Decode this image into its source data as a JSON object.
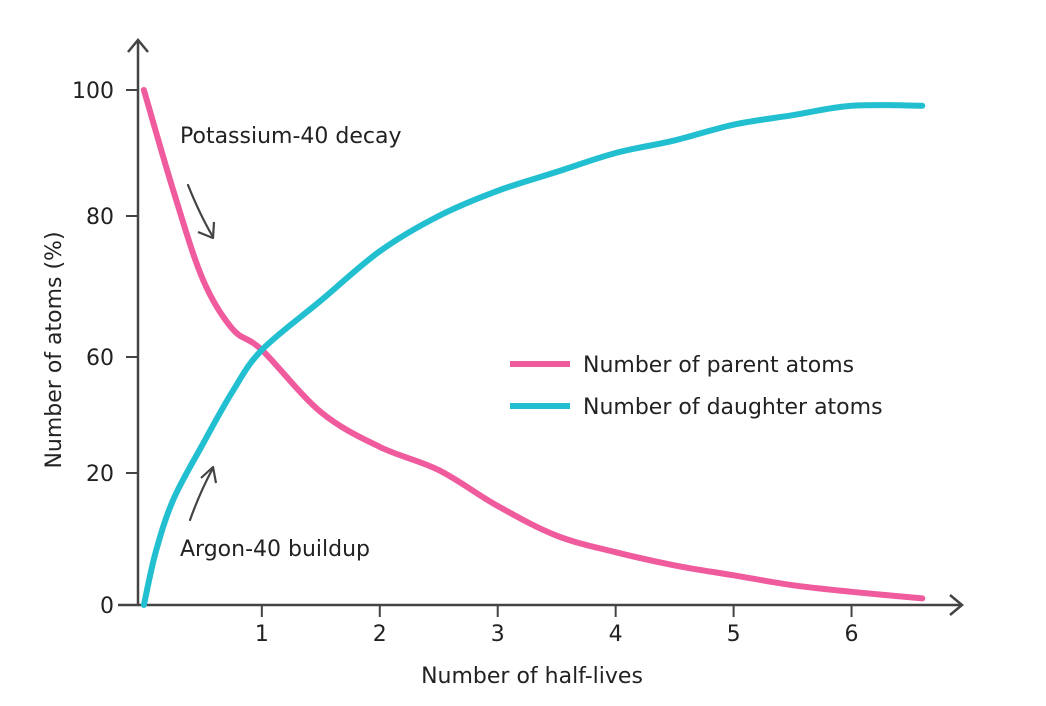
{
  "chart_data": {
    "type": "line",
    "title": "",
    "xlabel": "Number of half-lives",
    "ylabel": "Number of atoms (%)",
    "x_ticks": [
      {
        "value": 1,
        "label": "1"
      },
      {
        "value": 2,
        "label": "2"
      },
      {
        "value": 3,
        "label": "3"
      },
      {
        "value": 4,
        "label": "4"
      },
      {
        "value": 5,
        "label": "5"
      },
      {
        "value": 6,
        "label": "6"
      }
    ],
    "y_ticks": [
      {
        "value": 0,
        "label": "0"
      },
      {
        "value": 20,
        "label": "20"
      },
      {
        "value": 60,
        "label": "60"
      },
      {
        "value": 80,
        "label": "80"
      },
      {
        "value": 100,
        "label": "100"
      }
    ],
    "xlim": [
      -0.05,
      6.75
    ],
    "ylim": [
      0,
      100
    ],
    "grid": false,
    "legend_position": "center-right",
    "series": [
      {
        "name": "Number of parent atoms",
        "color": "#ef5b9c",
        "x": [
          0,
          0.25,
          0.5,
          0.75,
          1,
          1.5,
          2,
          2.5,
          3,
          3.5,
          4,
          4.5,
          5,
          5.5,
          6,
          6.6
        ],
        "y": [
          100,
          84,
          71,
          64,
          61,
          41,
          29,
          21,
          15,
          10.5,
          8,
          6,
          4.5,
          3,
          2,
          1
        ]
      },
      {
        "name": "Number of daughter atoms",
        "color": "#22bfd0",
        "x": [
          0,
          0.1,
          0.25,
          0.5,
          0.75,
          1,
          1.5,
          2,
          2.5,
          3,
          3.5,
          4,
          4.5,
          5,
          5.5,
          6,
          6.6
        ],
        "y": [
          0,
          8,
          16,
          30,
          48,
          61,
          68,
          75,
          80,
          84,
          87,
          90,
          92,
          94.5,
          96,
          97.5,
          97.5
        ]
      }
    ],
    "annotations": [
      {
        "text": "Potassium-40 decay",
        "at": [
          0.35,
          91
        ],
        "arrow": "down-right"
      },
      {
        "text": "Argon-40 buildup",
        "at": [
          0.35,
          9
        ],
        "arrow": "up-right"
      }
    ]
  }
}
